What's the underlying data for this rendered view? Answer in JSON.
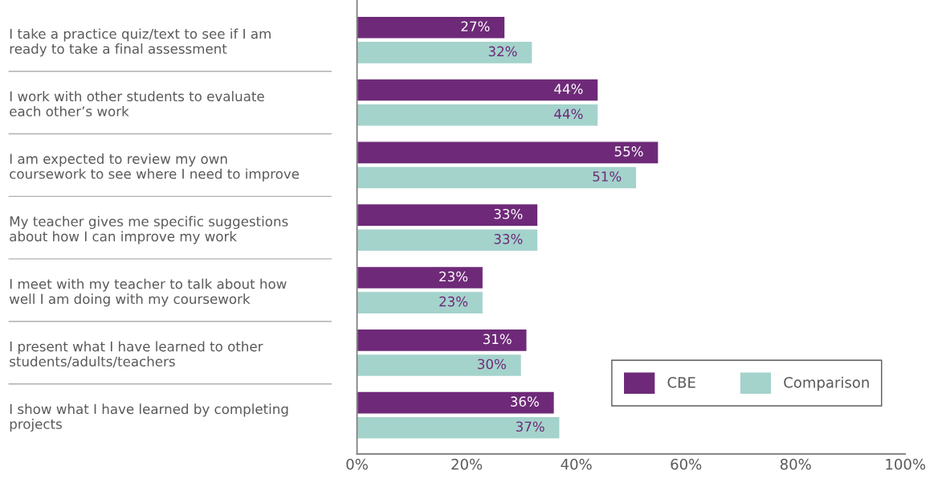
{
  "chart_data": {
    "type": "bar",
    "orientation": "horizontal",
    "categories": [
      "I take a practice quiz/text to see if I am\nready to take a final assessment",
      "I work with other students to evaluate\neach other’s work",
      "I am expected to review my own\ncoursework to see where I need to improve",
      "My teacher gives me specific suggestions\nabout how I can improve my work",
      "I meet with my teacher to talk about how\nwell I am doing with my coursework",
      "I present what I have learned to other\nstudents/adults/teachers",
      "I show what I have learned by completing\nprojects"
    ],
    "series": [
      {
        "name": "CBE",
        "color": "#6e2a78",
        "values": [
          27,
          44,
          55,
          33,
          23,
          31,
          36
        ],
        "value_labels": [
          "27%",
          "44%",
          "55%",
          "33%",
          "23%",
          "31%",
          "36%"
        ]
      },
      {
        "name": "Comparison",
        "color": "#a4d3cc",
        "values": [
          32,
          44,
          51,
          33,
          23,
          30,
          37
        ],
        "value_labels": [
          "32%",
          "44%",
          "51%",
          "33%",
          "23%",
          "30%",
          "37%"
        ]
      }
    ],
    "xlim": [
      0,
      100
    ],
    "xticks": [
      {
        "value": 0,
        "label": "0%"
      },
      {
        "value": 20,
        "label": "20%"
      },
      {
        "value": 40,
        "label": "40%"
      },
      {
        "value": 60,
        "label": "60%"
      },
      {
        "value": 80,
        "label": "80%"
      },
      {
        "value": 100,
        "label": "100%"
      }
    ],
    "grid": false,
    "legend": "bottom right"
  }
}
